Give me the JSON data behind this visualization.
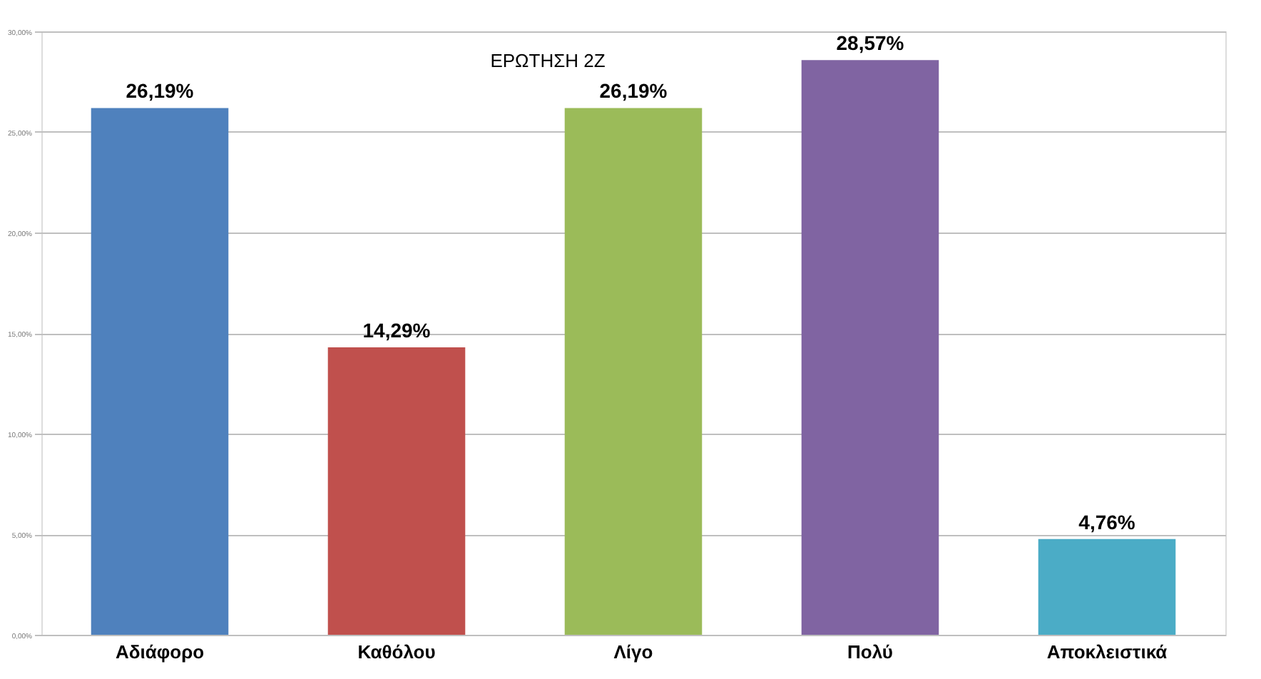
{
  "chart_data": {
    "type": "bar",
    "title": "ΕΡΩΤΗΣΗ 2Ζ",
    "categories": [
      "Αδιάφορο",
      "Καθόλου",
      "Λίγο",
      "Πολύ",
      "Αποκλειστικά"
    ],
    "values": [
      26.19,
      14.29,
      26.19,
      28.57,
      4.76
    ],
    "colors": [
      "#4f81bd",
      "#c0504d",
      "#9bbb59",
      "#8064a2",
      "#4bacc6"
    ],
    "value_labels": [
      "26,19%",
      "14,29%",
      "26,19%",
      "28,57%",
      "4,76%"
    ],
    "ylim": [
      0,
      30
    ],
    "yticks": [
      {
        "value": 0,
        "label": "0,00%"
      },
      {
        "value": 5,
        "label": "5,00%"
      },
      {
        "value": 10,
        "label": "10,00%"
      },
      {
        "value": 15,
        "label": "15,00%"
      },
      {
        "value": 20,
        "label": "20,00%"
      },
      {
        "value": 25,
        "label": "25,00%"
      },
      {
        "value": 30,
        "label": "30,00%"
      }
    ],
    "grid": "y"
  }
}
